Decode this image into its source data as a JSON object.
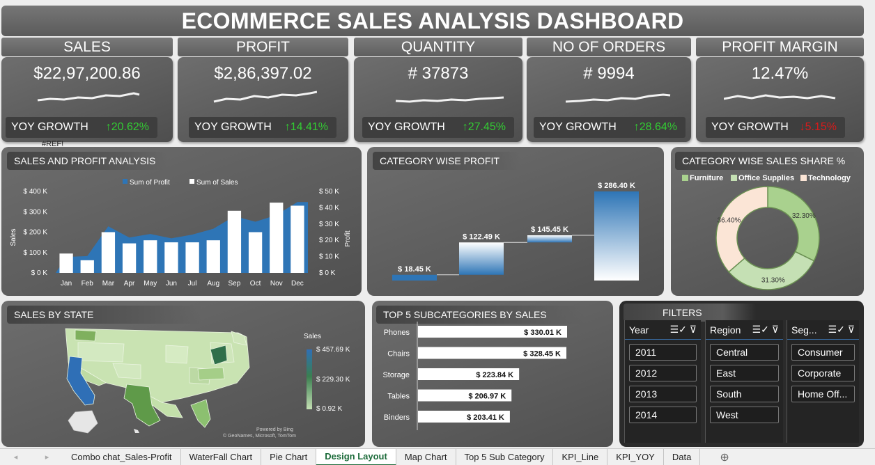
{
  "title": "ECOMMERCE SALES ANALYSIS DASHBOARD",
  "kpis": [
    {
      "label": "SALES",
      "value": "$22,97,200.86",
      "yoy_label": "YOY GROWTH",
      "yoy": "↑20.62%",
      "trend": "up"
    },
    {
      "label": "PROFIT",
      "value": "$2,86,397.02",
      "yoy_label": "YOY GROWTH",
      "yoy": "↑14.41%",
      "trend": "up"
    },
    {
      "label": "QUANTITY",
      "value": "# 37873",
      "yoy_label": "YOY GROWTH",
      "yoy": "↑27.45%",
      "trend": "up"
    },
    {
      "label": "NO OF ORDERS",
      "value": "# 9994",
      "yoy_label": "YOY GROWTH",
      "yoy": "↑28.64%",
      "trend": "up"
    },
    {
      "label": "PROFIT MARGIN",
      "value": "12.47%",
      "yoy_label": "YOY GROWTH",
      "yoy": "↓5.15%",
      "trend": "down"
    }
  ],
  "ref_error": "#REF!",
  "colors": {
    "up": "#33cc33",
    "down": "#d81b1b",
    "profit": "#2e75b6",
    "sales": "#ffffff",
    "furniture": "#a9d18e",
    "office": "#c5e0b4",
    "technology": "#fbe5d6"
  },
  "panels": {
    "combo": "SALES AND PROFIT ANALYSIS",
    "waterfall": "CATEGORY WISE PROFIT",
    "donut": "CATEGORY WISE SALES SHARE %",
    "map": "SALES BY STATE",
    "bars": "TOP 5 SUBCATEGORIES BY SALES",
    "filters": "FILTERS"
  },
  "chart_data": [
    {
      "type": "bar",
      "title": "SALES AND PROFIT ANALYSIS",
      "categories": [
        "Jan",
        "Feb",
        "Mar",
        "Apr",
        "May",
        "Jun",
        "Jul",
        "Aug",
        "Sep",
        "Oct",
        "Nov",
        "Dec"
      ],
      "series": [
        {
          "name": "Sum of Profit",
          "chart": "area",
          "axis": "right",
          "values": [
            9800,
            10300,
            28600,
            21700,
            23900,
            21200,
            23500,
            27100,
            34800,
            31400,
            35500,
            43500
          ]
        },
        {
          "name": "Sum of Sales",
          "chart": "bar",
          "axis": "left",
          "values": [
            95000,
            62000,
            200000,
            145000,
            160000,
            150000,
            150000,
            160000,
            305000,
            200000,
            345000,
            330000
          ]
        }
      ],
      "ylabel": "Sales",
      "y2label": "Profit",
      "ylim": [
        0,
        400000
      ],
      "y2lim": [
        0,
        50000
      ],
      "yticks": [
        "$ 0 K",
        "$ 100 K",
        "$ 200 K",
        "$ 300 K",
        "$ 400 K"
      ],
      "y2ticks": [
        "$ 0 K",
        "$ 10 K",
        "$ 20 K",
        "$ 30 K",
        "$ 40 K",
        "$ 50 K"
      ],
      "legend": "top"
    },
    {
      "type": "bar",
      "title": "CATEGORY WISE PROFIT",
      "subtype": "waterfall",
      "labels": [
        "$ 18.45 K",
        "$ 122.49 K",
        "$ 145.45 K",
        "$ 286.40 K"
      ],
      "cumulative": [
        18.45,
        122.49,
        145.45,
        286.4
      ],
      "units": "$ K"
    },
    {
      "type": "pie",
      "subtype": "donut",
      "title": "CATEGORY WISE SALES SHARE %",
      "categories": [
        "Furniture",
        "Office Supplies",
        "Technology"
      ],
      "values": [
        32.3,
        31.3,
        36.4
      ],
      "labels": [
        "32.30%",
        "31.30%",
        "36.40%"
      ],
      "legend": "top"
    },
    {
      "type": "bar",
      "orientation": "horizontal",
      "title": "TOP 5 SUBCATEGORIES BY SALES",
      "categories": [
        "Phones",
        "Chairs",
        "Storage",
        "Tables",
        "Binders"
      ],
      "values": [
        330.01,
        328.45,
        223.84,
        206.97,
        203.41
      ],
      "labels": [
        "$ 330.01 K",
        "$ 328.45 K",
        "$ 223.84 K",
        "$ 206.97 K",
        "$ 203.41 K"
      ],
      "units": "$ K"
    }
  ],
  "map": {
    "legend_title": "Sales",
    "legend_values": [
      "$ 457.69 K",
      "$ 229.30 K",
      "$ 0.92 K"
    ],
    "credit_line1": "Powered by Bing",
    "credit_line2": "© GeoNames, Microsoft, TomTom"
  },
  "filters": {
    "year": {
      "label": "Year",
      "options": [
        "2011",
        "2012",
        "2013",
        "2014"
      ]
    },
    "region": {
      "label": "Region",
      "options": [
        "Central",
        "East",
        "South",
        "West"
      ]
    },
    "segment": {
      "label": "Seg...",
      "options": [
        "Consumer",
        "Corporate",
        "Home Off..."
      ]
    }
  },
  "sheet_tabs": [
    "Combo chat_Sales-Profit",
    "WaterFall Chart",
    "Pie Chart",
    "Design Layout",
    "Map Chart",
    "Top 5 Sub Category",
    "KPI_Line",
    "KPI_YOY",
    "Data"
  ],
  "active_tab": "Design Layout"
}
